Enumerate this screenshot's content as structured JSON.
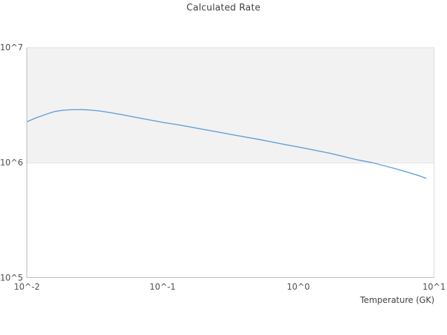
{
  "page": {
    "background": "#ffffff"
  },
  "chart_data": {
    "type": "line",
    "title": "Calculated Rate",
    "xlabel": "Temperature (GK)",
    "ylabel": "",
    "x_scale": "log",
    "y_scale": "log",
    "xlim": [
      0.01,
      10
    ],
    "ylim": [
      100000,
      10000000
    ],
    "grid": false,
    "legend_position": "none",
    "x_ticks": [
      {
        "value": 0.01,
        "label": "10^-2"
      },
      {
        "value": 0.1,
        "label": "10^-1"
      },
      {
        "value": 1,
        "label": "10^0"
      },
      {
        "value": 10,
        "label": "10^1"
      }
    ],
    "y_ticks": [
      {
        "value": 100000,
        "label": "10^5"
      },
      {
        "value": 1000000,
        "label": "10^6"
      },
      {
        "value": 10000000,
        "label": "10^7"
      }
    ],
    "bands": [
      {
        "from": 1000000,
        "to": 10000000,
        "color": "#f2f2f2"
      }
    ],
    "series": [
      {
        "name": "calculated-rate",
        "color": "#5c9ed7",
        "line_width": 1.4,
        "x": [
          0.01,
          0.0115,
          0.013,
          0.0145,
          0.016,
          0.018,
          0.021,
          0.025,
          0.029,
          0.034,
          0.042,
          0.052,
          0.065,
          0.08,
          0.1,
          0.13,
          0.16,
          0.2,
          0.25,
          0.32,
          0.4,
          0.52,
          0.65,
          0.82,
          1.0,
          1.3,
          1.7,
          2.1,
          2.7,
          3.5,
          4.3,
          5.5,
          7.0,
          8.0,
          8.75
        ],
        "y": [
          2280000,
          2450000,
          2580000,
          2700000,
          2800000,
          2860000,
          2900000,
          2910000,
          2880000,
          2830000,
          2720000,
          2600000,
          2470000,
          2360000,
          2250000,
          2140000,
          2050000,
          1950000,
          1860000,
          1760000,
          1680000,
          1590000,
          1510000,
          1430000,
          1370000,
          1290000,
          1210000,
          1140000,
          1060000,
          1000000,
          940000,
          870000,
          800000,
          760000,
          730000
        ]
      }
    ],
    "colors": {
      "title_text": "#3f3f3f",
      "tick_text": "#4d4d4d",
      "axis_label_text": "#3f3f3f",
      "spine_dark": "#b9b9b9",
      "spine_light": "#dcdcdc",
      "band_fill": "#f2f2f2",
      "band_edge": "#e4e4e4",
      "plot_background": "#ffffff",
      "line": "#5c9ed7"
    }
  }
}
